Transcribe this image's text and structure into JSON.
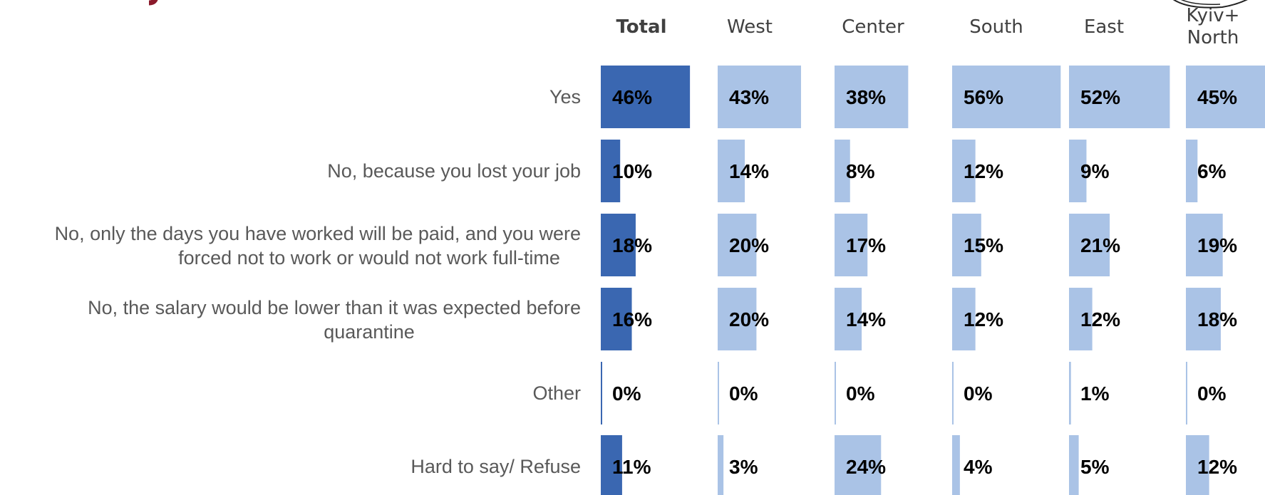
{
  "colors": {
    "total_bar": "#3a67b1",
    "region_bar": "#aac3e6",
    "row_label": "#595959",
    "header": "#404040",
    "title_accent": "#8b1a2b"
  },
  "chart_data": {
    "type": "bar",
    "orientation": "horizontal",
    "layout": "small-multiples",
    "columns": [
      "Total",
      "West",
      "Center",
      "South",
      "East",
      "Kyiv+ North"
    ],
    "categories": [
      "Yes",
      "No, because you lost your job",
      "No, only the days you have worked will be paid, and you were forced not to work or would not work full-time",
      "No, the salary would be lower than it was expected before quarantine",
      "Other",
      "Hard to say/ Refuse"
    ],
    "series": [
      {
        "name": "Total",
        "values": [
          46,
          10,
          18,
          16,
          0,
          11
        ],
        "labels": [
          "46%",
          "10%",
          "18%",
          "16%",
          "0%",
          "11%"
        ]
      },
      {
        "name": "West",
        "values": [
          43,
          14,
          20,
          20,
          0,
          3
        ],
        "labels": [
          "43%",
          "14%",
          "20%",
          "20%",
          "0%",
          "3%"
        ]
      },
      {
        "name": "Center",
        "values": [
          38,
          8,
          17,
          14,
          0,
          24
        ],
        "labels": [
          "38%",
          "8%",
          "17%",
          "14%",
          "0%",
          "24%"
        ]
      },
      {
        "name": "South",
        "values": [
          56,
          12,
          15,
          12,
          0,
          4
        ],
        "labels": [
          "56%",
          "12%",
          "15%",
          "12%",
          "0%",
          "4%"
        ]
      },
      {
        "name": "East",
        "values": [
          52,
          9,
          21,
          12,
          1,
          5
        ],
        "labels": [
          "52%",
          "9%",
          "21%",
          "12%",
          "1%",
          "5%"
        ]
      },
      {
        "name": "Kyiv+ North",
        "values": [
          45,
          6,
          19,
          18,
          0,
          12
        ],
        "labels": [
          "45%",
          "6%",
          "19%",
          "18%",
          "0%",
          "12%"
        ]
      }
    ],
    "unit": "%",
    "xlim": [
      0,
      100
    ],
    "grid": false,
    "legend": "none"
  }
}
